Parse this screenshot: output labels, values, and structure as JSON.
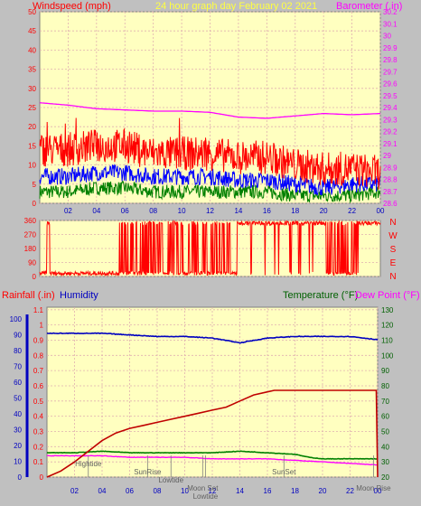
{
  "header": {
    "left_label": "Windspeed (mph)",
    "center_title": "24 hour graph day   February 02 2021",
    "right_label": "Barometer (.in)"
  },
  "lower_header": {
    "rainfall_label": "Rainfall (.in)",
    "humidity_label": "Humidity",
    "temperature_label": "Temperature (°F)",
    "dewpoint_label": "Dew Point (°F)"
  },
  "colors": {
    "plot_bg": "#ffffc0",
    "page_bg": "#c0c0c0",
    "grid": "#e0b0b0",
    "wind_gust": "#ff0000",
    "wind_avg": "#0000ff",
    "wind_low": "#008000",
    "barometer": "#ff00ff",
    "wind_dir": "#ff0000",
    "rain": "#c00000",
    "humidity": "#0000c0",
    "temperature": "#008000",
    "dewpoint": "#ff00ff",
    "label_red": "#ff0000",
    "label_blue": "#0000c0",
    "label_green": "#006000",
    "label_magenta": "#ff00ff",
    "title_yellow": "#ffff40"
  },
  "chart_data": [
    {
      "type": "line",
      "id": "wind",
      "x_ticks": [
        "02",
        "04",
        "06",
        "08",
        "10",
        "12",
        "14",
        "16",
        "18",
        "20",
        "22",
        "00"
      ],
      "y_ticks": [
        "0",
        "5",
        "10",
        "15",
        "20",
        "25",
        "30",
        "35",
        "40",
        "45",
        "50"
      ],
      "ylim": [
        0,
        50
      ],
      "y2_ticks": [
        "28.6",
        "28.7",
        "28.8",
        "28.9",
        "29",
        "29.1",
        "29.2",
        "29.3",
        "29.4",
        "29.5",
        "29.6",
        "29.7",
        "29.8",
        "29.9",
        "30",
        "30.1",
        "30.2"
      ],
      "y2lim": [
        28.6,
        30.2
      ],
      "series": [
        {
          "key": "gust",
          "x": [
            0,
            2,
            4,
            6,
            8,
            10,
            12,
            14,
            16,
            18,
            20,
            22,
            24
          ],
          "values": [
            14,
            14,
            15,
            15,
            13,
            13,
            13,
            12,
            12,
            10,
            9,
            9,
            8
          ]
        },
        {
          "key": "avg",
          "x": [
            0,
            2,
            4,
            6,
            8,
            10,
            12,
            14,
            16,
            18,
            20,
            22,
            24
          ],
          "values": [
            7,
            7,
            8,
            8,
            7,
            7,
            7,
            6,
            6,
            5,
            4,
            5,
            5
          ]
        },
        {
          "key": "low",
          "x": [
            0,
            2,
            4,
            6,
            8,
            10,
            12,
            14,
            16,
            18,
            20,
            22,
            24
          ],
          "values": [
            3,
            3,
            4,
            4,
            3,
            3,
            3,
            3,
            3,
            2,
            2,
            2,
            3
          ]
        },
        {
          "key": "barometer",
          "x": [
            0,
            2,
            4,
            6,
            8,
            10,
            12,
            14,
            16,
            18,
            20,
            22,
            24
          ],
          "values": [
            29.44,
            29.42,
            29.39,
            29.38,
            29.37,
            29.37,
            29.36,
            29.32,
            29.31,
            29.33,
            29.35,
            29.34,
            29.35
          ]
        }
      ],
      "grid": true
    },
    {
      "type": "scatter",
      "id": "wind_direction",
      "y_ticks": [
        "0",
        "90",
        "180",
        "270",
        "360"
      ],
      "ylim": [
        0,
        360
      ],
      "right_labels": [
        "N",
        "W",
        "S",
        "E",
        "N"
      ],
      "grid": true
    },
    {
      "type": "line",
      "id": "rain_temp",
      "y_ticks": [
        "0",
        "10",
        "20",
        "30",
        "40",
        "50",
        "60",
        "70",
        "80",
        "90",
        "100"
      ],
      "ylim": [
        0,
        100
      ],
      "y_rain_ticks": [
        "0",
        "0.1",
        "0.2",
        "0.3",
        "0.4",
        "0.5",
        "0.6",
        "0.7",
        "0.8",
        "0.9",
        "1",
        "1.1"
      ],
      "y_rain_lim": [
        0,
        1.1
      ],
      "y_temp_ticks": [
        "20",
        "30",
        "40",
        "50",
        "60",
        "70",
        "80",
        "90",
        "100",
        "110",
        "120",
        "130"
      ],
      "y_temp_lim": [
        20,
        130
      ],
      "x_ticks": [
        "02",
        "04",
        "06",
        "08",
        "10",
        "12",
        "14",
        "16",
        "18",
        "20",
        "22",
        "00"
      ],
      "series": [
        {
          "key": "humidity",
          "x": [
            0,
            2,
            4,
            6,
            8,
            10,
            12,
            14,
            16,
            18,
            20,
            22,
            24
          ],
          "values": [
            91,
            91,
            91,
            90,
            89,
            89,
            88,
            85,
            88,
            89,
            89,
            89,
            87
          ]
        },
        {
          "key": "rain",
          "x": [
            0,
            1,
            2,
            3,
            4,
            5,
            6,
            7,
            8,
            9,
            10,
            11,
            12,
            13,
            14,
            15,
            16,
            16.5,
            23.9,
            24
          ],
          "values": [
            0,
            0.04,
            0.1,
            0.17,
            0.24,
            0.29,
            0.32,
            0.34,
            0.36,
            0.38,
            0.4,
            0.42,
            0.44,
            0.46,
            0.5,
            0.54,
            0.56,
            0.57,
            0.57,
            0
          ]
        },
        {
          "key": "temperature",
          "x": [
            0,
            2,
            4,
            6,
            8,
            10,
            12,
            14,
            16,
            18,
            19,
            20,
            22,
            24
          ],
          "values": [
            36,
            36,
            37,
            36,
            36,
            36,
            36,
            37,
            36,
            35,
            33,
            32,
            32,
            32
          ]
        },
        {
          "key": "dewpoint",
          "x": [
            0,
            2,
            4,
            6,
            8,
            10,
            12,
            14,
            16,
            18,
            20,
            22,
            24
          ],
          "values": [
            34,
            34,
            34,
            33,
            33,
            33,
            32,
            32,
            32,
            31,
            30,
            29,
            28
          ]
        }
      ],
      "annotations": [
        {
          "label": "Hightide",
          "x": 3.0,
          "row": 0
        },
        {
          "label": "SunRise",
          "x": 7.3,
          "row": 1
        },
        {
          "label": "Lowtide",
          "x": 9.0,
          "row": 2
        },
        {
          "label": "Moon Set",
          "x": 11.3,
          "row": 3
        },
        {
          "label": "Lowtide",
          "x": 11.5,
          "row": 4
        },
        {
          "label": "SunSet",
          "x": 17.2,
          "row": 1
        },
        {
          "label": "Moon Rise",
          "x": 23.7,
          "row": 3
        }
      ],
      "grid": true
    }
  ]
}
